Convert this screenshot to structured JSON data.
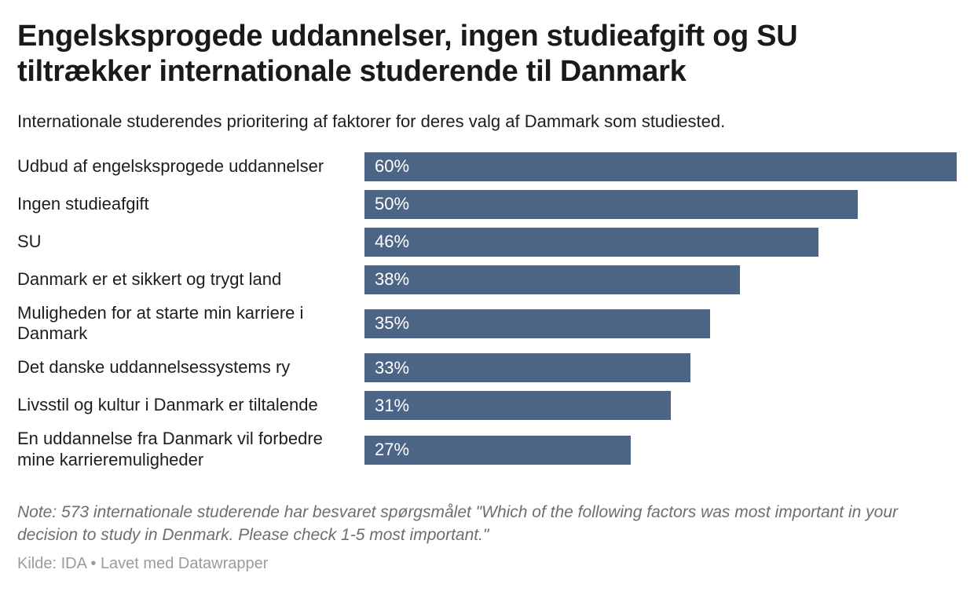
{
  "header": {
    "title": "Engelsksprogede uddannelser, ingen studieafgift og SU tiltrækker internationale studerende til Danmark",
    "subtitle": "Internationale studerendes prioritering af faktorer for deres valg af Dammark som studiested."
  },
  "chart_data": {
    "type": "bar",
    "orientation": "horizontal",
    "title": "Engelsksprogede uddannelser, ingen studieafgift og SU tiltrækker internationale studerende til Danmark",
    "subtitle": "Internationale studerendes prioritering af faktorer for deres valg af Dammark som studiested.",
    "categories": [
      "Udbud af engelsksprogede uddannelser",
      "Ingen studieafgift",
      "SU",
      "Danmark er et sikkert og trygt land",
      "Muligheden for at starte min karriere i Danmark",
      "Det danske uddannelsessystems ry",
      "Livsstil og kultur i Danmark er tiltalende",
      "En uddannelse fra Danmark vil forbedre mine karrieremuligheder"
    ],
    "values": [
      60,
      50,
      46,
      38,
      35,
      33,
      31,
      27
    ],
    "value_labels": [
      "60%",
      "50%",
      "46%",
      "38%",
      "35%",
      "33%",
      "31%",
      "27%"
    ],
    "xlim": [
      0,
      60
    ],
    "xlabel": "",
    "ylabel": "",
    "grid": false,
    "legend": false,
    "bar_color": "#4c6485",
    "value_label_color": "#ffffff"
  },
  "footer": {
    "note": "Note: 573 internationale studerende har besvaret spørgsmålet \"Which of the following factors was most important in your decision to study in Denmark. Please check 1-5 most important.\"",
    "source": "Kilde: IDA • Lavet med Datawrapper"
  }
}
